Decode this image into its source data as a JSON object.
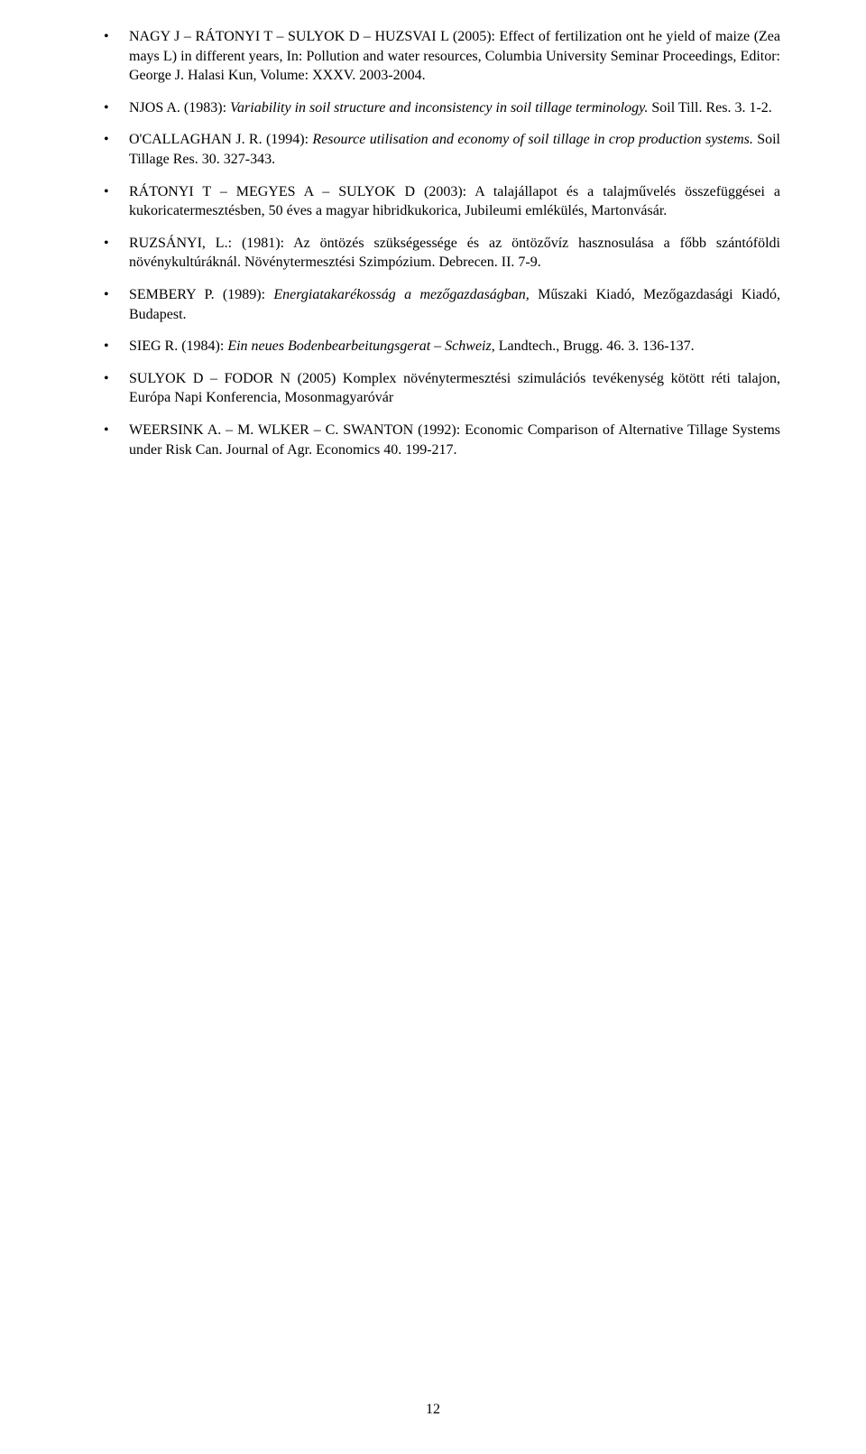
{
  "references": [
    {
      "segments": [
        {
          "text": "NAGY J – RÁTONYI T – SULYOK D – HUZSVAI L (2005): Effect of fertilization ont he yield of maize (Zea mays L) in different years, In: Pollution and water resources, Columbia University Seminar Proceedings, Editor: George J. Halasi Kun, Volume: XXXV. 2003-2004.",
          "italic": false
        }
      ]
    },
    {
      "segments": [
        {
          "text": "NJOS A. (1983): ",
          "italic": false
        },
        {
          "text": "Variability in soil structure and inconsistency in soil tillage terminology.",
          "italic": true
        },
        {
          "text": " Soil Till. Res. 3. 1-2.",
          "italic": false
        }
      ]
    },
    {
      "segments": [
        {
          "text": "O'CALLAGHAN J. R. (1994):  ",
          "italic": false
        },
        {
          "text": "Resource utilisation and economy of soil tillage in crop production systems.",
          "italic": true
        },
        {
          "text": " Soil Tillage Res. 30. 327-343.",
          "italic": false
        }
      ]
    },
    {
      "segments": [
        {
          "text": "RÁTONYI T – MEGYES A – SULYOK D (2003): A talajállapot és a talajművelés összefüggései a kukoricatermesztésben, 50 éves a magyar hibridkukorica, Jubileumi emlékülés, Martonvásár.",
          "italic": false
        }
      ]
    },
    {
      "segments": [
        {
          "text": "RUZSÁNYI, L.: (1981): Az öntözés szükségessége és az öntözővíz hasznosulása a főbb szántóföldi növénykultúráknál. Növénytermesztési Szimpózium. Debrecen. II. 7-9.",
          "italic": false
        }
      ]
    },
    {
      "segments": [
        {
          "text": "SEMBERY P. (1989):   ",
          "italic": false
        },
        {
          "text": "Energiatakarékosság   a   mezőgazdaságban,",
          "italic": true
        },
        {
          "text": "   Műszaki   Kiadó, Mezőgazdasági Kiadó, Budapest.",
          "italic": false
        }
      ]
    },
    {
      "segments": [
        {
          "text": "SIEG R. (1984):  ",
          "italic": false
        },
        {
          "text": "Ein neues Bodenbearbeitungsgerat – Schweiz",
          "italic": true
        },
        {
          "text": ", Landtech., Brugg. 46. 3. 136-137.",
          "italic": false
        }
      ]
    },
    {
      "segments": [
        {
          "text": "SULYOK D – FODOR N (2005) Komplex növénytermesztési szimulációs tevékenység kötött réti talajon, Európa Napi Konferencia, Mosonmagyaróvár",
          "italic": false
        }
      ]
    },
    {
      "segments": [
        {
          "text": "WEERSINK A. – M. WLKER – C. SWANTON (1992): Economic Comparison of Alternative Tillage Systems under Risk Can. Journal of Agr. Economics 40. 199-217.",
          "italic": false
        }
      ]
    }
  ],
  "page_number": "12"
}
